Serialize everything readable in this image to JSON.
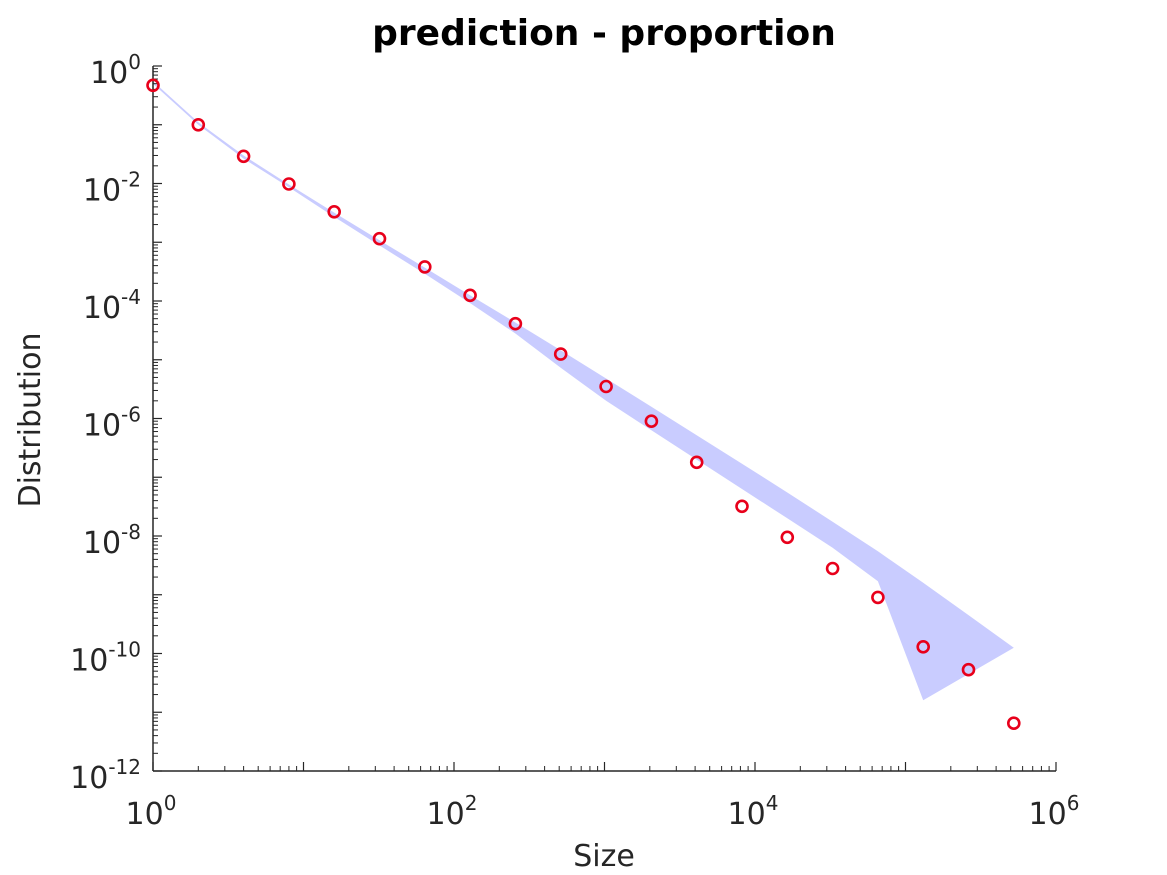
{
  "chart_data": {
    "type": "scatter",
    "title": "prediction - proportion",
    "xlabel": "Size",
    "ylabel": "Distribution",
    "xscale": "log",
    "yscale": "log",
    "xlim": [
      1,
      1000000
    ],
    "ylim": [
      1e-12,
      1
    ],
    "xticks": [
      {
        "base": "10",
        "exp": "0"
      },
      {
        "base": "10",
        "exp": "2"
      },
      {
        "base": "10",
        "exp": "4"
      },
      {
        "base": "10",
        "exp": "6"
      }
    ],
    "yticks": [
      {
        "base": "10",
        "exp": "0"
      },
      {
        "base": "10",
        "exp": "-2"
      },
      {
        "base": "10",
        "exp": "-4"
      },
      {
        "base": "10",
        "exp": "-6"
      },
      {
        "base": "10",
        "exp": "-8"
      },
      {
        "base": "10",
        "exp": "-10"
      },
      {
        "base": "10",
        "exp": "-12"
      }
    ],
    "grid": false,
    "colors": {
      "points": "#e8001b",
      "band": "#c9ccff",
      "axis": "#262626"
    },
    "series": [
      {
        "marker": "circle",
        "x": [
          1,
          2,
          4,
          8,
          16,
          32,
          64,
          128,
          256,
          512,
          1024,
          2048,
          4096,
          8192,
          16384,
          32768,
          65536,
          131072,
          262144,
          524288
        ],
        "y": [
          0.47,
          0.1,
          0.029,
          0.0098,
          0.0033,
          0.00115,
          0.00038,
          0.000125,
          4.1e-05,
          1.25e-05,
          3.5e-06,
          9e-07,
          1.8e-07,
          3.2e-08,
          9.5e-09,
          2.8e-09,
          9e-10,
          1.3e-10,
          5.3e-11,
          6.5e-12
        ]
      }
    ],
    "band": {
      "x": [
        1,
        2,
        4,
        8,
        16,
        32,
        64,
        128,
        256,
        512,
        1024,
        2048,
        4096,
        8192,
        16384,
        32768,
        65536,
        131072,
        262144,
        524288
      ],
      "upper": [
        0.55,
        0.11,
        0.03,
        0.0096,
        0.0032,
        0.00108,
        0.00037,
        0.000125,
        4.3e-05,
        1.45e-05,
        4.8e-06,
        1.58e-06,
        5.2e-07,
        1.7e-07,
        5.5e-08,
        1.75e-08,
        5.5e-09,
        1.6e-09,
        4.5e-10,
        1.25e-10
      ],
      "lower": [
        0.5,
        0.1,
        0.0265,
        0.0086,
        0.0027,
        0.00088,
        0.00029,
        9.2e-05,
        2.8e-05,
        7.3e-06,
        2e-06,
        6.3e-07,
        2e-07,
        6.3e-08,
        2e-08,
        6.3e-09,
        1.7e-09,
        1.6e-11,
        null,
        null
      ]
    }
  }
}
